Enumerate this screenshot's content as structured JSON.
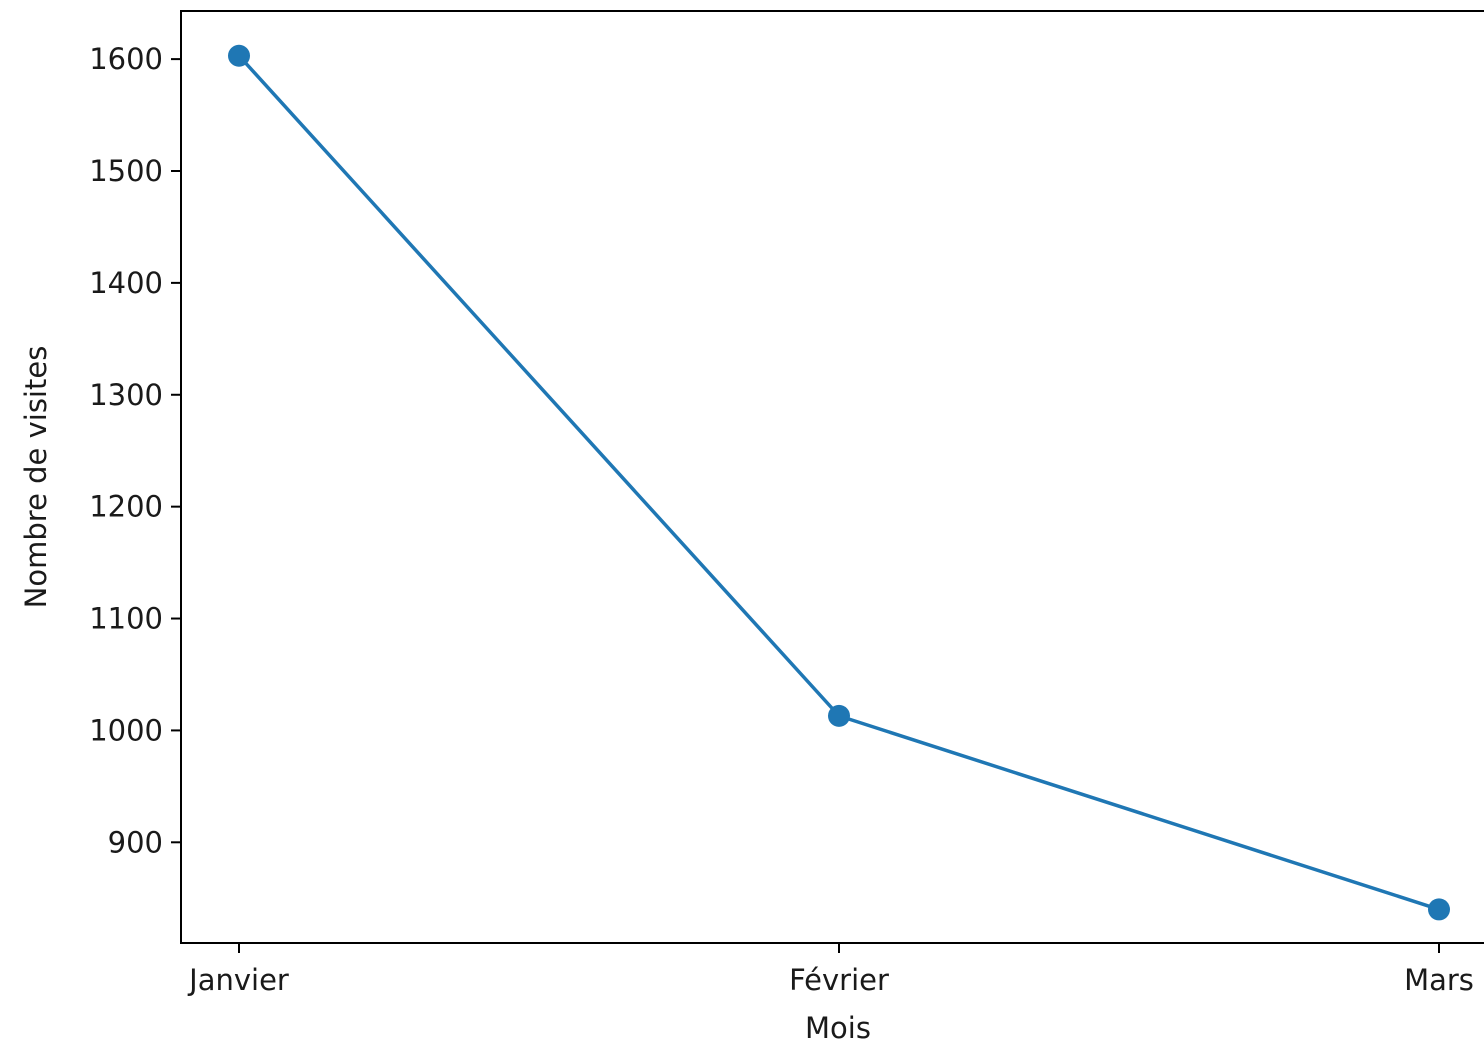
{
  "chart_data": {
    "type": "line",
    "title": "",
    "xlabel": "Mois",
    "ylabel": "Nombre de visites",
    "categories": [
      "Janvier",
      "Février",
      "Mars"
    ],
    "series": [
      {
        "values": [
          1603,
          1013,
          840
        ],
        "color": "#1f77b4",
        "marker": "circle"
      }
    ],
    "ylim": [
      810,
      1643
    ],
    "yticks": [
      900,
      1000,
      1100,
      1200,
      1300,
      1400,
      1500,
      1600
    ],
    "ytick_labels": [
      "900",
      "1000",
      "1100",
      "1200",
      "1300",
      "1400",
      "1500",
      "1600"
    ],
    "grid": false,
    "legend": "none"
  }
}
